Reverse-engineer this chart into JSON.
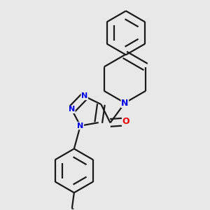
{
  "background_color": "#e8e8e8",
  "bond_color": "#1a1a1a",
  "nitrogen_color": "#0000ee",
  "oxygen_color": "#ee0000",
  "lw": 1.6,
  "dbo": 0.018,
  "figsize": [
    3.0,
    3.0
  ],
  "dpi": 100,
  "xlim": [
    0.0,
    1.0
  ],
  "ylim": [
    0.0,
    1.0
  ]
}
